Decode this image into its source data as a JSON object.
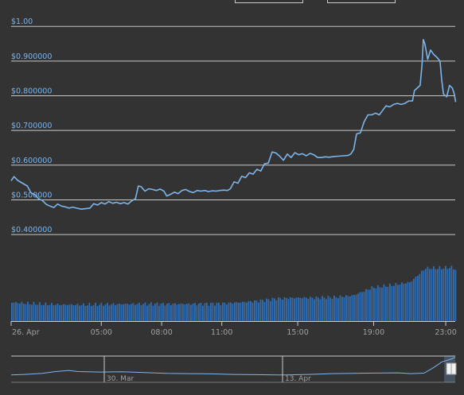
{
  "chart_data": {
    "type": "line",
    "price_axis": {
      "tick_values": [
        1.0,
        0.9,
        0.8,
        0.7,
        0.6,
        0.5,
        0.4
      ],
      "tick_labels": [
        "$1.00",
        "$0.900000",
        "$0.800000",
        "$0.700000",
        "$0.600000",
        "$0.500000",
        "$0.400000"
      ]
    },
    "time_axis": {
      "tick_labels": [
        "26. Apr",
        "05:00",
        "08:00",
        "11:00",
        "15:00",
        "19:00",
        "23:00"
      ],
      "range_hours": [
        0,
        23.4
      ]
    },
    "price_series": [
      [
        0.0,
        0.555
      ],
      [
        0.15,
        0.567
      ],
      [
        0.35,
        0.556
      ],
      [
        0.6,
        0.548
      ],
      [
        0.85,
        0.54
      ],
      [
        1.05,
        0.52
      ],
      [
        1.25,
        0.515
      ],
      [
        1.45,
        0.503
      ],
      [
        1.65,
        0.498
      ],
      [
        1.85,
        0.487
      ],
      [
        2.05,
        0.482
      ],
      [
        2.25,
        0.478
      ],
      [
        2.45,
        0.488
      ],
      [
        2.65,
        0.482
      ],
      [
        2.85,
        0.48
      ],
      [
        3.05,
        0.476
      ],
      [
        3.25,
        0.479
      ],
      [
        3.45,
        0.476
      ],
      [
        3.7,
        0.473
      ],
      [
        3.95,
        0.475
      ],
      [
        4.15,
        0.476
      ],
      [
        4.35,
        0.489
      ],
      [
        4.55,
        0.485
      ],
      [
        4.75,
        0.492
      ],
      [
        4.95,
        0.488
      ],
      [
        5.15,
        0.495
      ],
      [
        5.35,
        0.49
      ],
      [
        5.55,
        0.493
      ],
      [
        5.75,
        0.489
      ],
      [
        5.95,
        0.492
      ],
      [
        6.15,
        0.488
      ],
      [
        6.35,
        0.497
      ],
      [
        6.55,
        0.503
      ],
      [
        6.7,
        0.54
      ],
      [
        6.85,
        0.538
      ],
      [
        7.05,
        0.525
      ],
      [
        7.25,
        0.532
      ],
      [
        7.45,
        0.53
      ],
      [
        7.65,
        0.527
      ],
      [
        7.85,
        0.531
      ],
      [
        8.05,
        0.525
      ],
      [
        8.2,
        0.511
      ],
      [
        8.4,
        0.516
      ],
      [
        8.6,
        0.522
      ],
      [
        8.8,
        0.518
      ],
      [
        9.0,
        0.527
      ],
      [
        9.2,
        0.53
      ],
      [
        9.4,
        0.524
      ],
      [
        9.6,
        0.521
      ],
      [
        9.8,
        0.527
      ],
      [
        10.0,
        0.525
      ],
      [
        10.2,
        0.527
      ],
      [
        10.4,
        0.524
      ],
      [
        10.6,
        0.526
      ],
      [
        10.8,
        0.525
      ],
      [
        11.0,
        0.527
      ],
      [
        11.2,
        0.528
      ],
      [
        11.4,
        0.527
      ],
      [
        11.55,
        0.532
      ],
      [
        11.75,
        0.552
      ],
      [
        11.95,
        0.548
      ],
      [
        12.15,
        0.568
      ],
      [
        12.35,
        0.564
      ],
      [
        12.55,
        0.578
      ],
      [
        12.75,
        0.574
      ],
      [
        12.95,
        0.588
      ],
      [
        13.15,
        0.583
      ],
      [
        13.35,
        0.604
      ],
      [
        13.55,
        0.606
      ],
      [
        13.75,
        0.638
      ],
      [
        13.95,
        0.635
      ],
      [
        14.15,
        0.626
      ],
      [
        14.35,
        0.614
      ],
      [
        14.55,
        0.632
      ],
      [
        14.75,
        0.622
      ],
      [
        14.95,
        0.636
      ],
      [
        15.15,
        0.63
      ],
      [
        15.35,
        0.633
      ],
      [
        15.55,
        0.627
      ],
      [
        15.75,
        0.634
      ],
      [
        15.95,
        0.63
      ],
      [
        16.15,
        0.622
      ],
      [
        16.35,
        0.622
      ],
      [
        16.55,
        0.624
      ],
      [
        16.75,
        0.623
      ],
      [
        17.0,
        0.625
      ],
      [
        17.25,
        0.626
      ],
      [
        17.5,
        0.627
      ],
      [
        17.75,
        0.628
      ],
      [
        17.9,
        0.632
      ],
      [
        18.05,
        0.645
      ],
      [
        18.2,
        0.69
      ],
      [
        18.4,
        0.693
      ],
      [
        18.6,
        0.725
      ],
      [
        18.8,
        0.745
      ],
      [
        19.0,
        0.745
      ],
      [
        19.2,
        0.75
      ],
      [
        19.4,
        0.745
      ],
      [
        19.55,
        0.756
      ],
      [
        19.75,
        0.771
      ],
      [
        19.95,
        0.768
      ],
      [
        20.15,
        0.775
      ],
      [
        20.35,
        0.778
      ],
      [
        20.55,
        0.775
      ],
      [
        20.75,
        0.778
      ],
      [
        20.95,
        0.785
      ],
      [
        21.15,
        0.785
      ],
      [
        21.25,
        0.815
      ],
      [
        21.45,
        0.825
      ],
      [
        21.55,
        0.83
      ],
      [
        21.65,
        0.89
      ],
      [
        21.72,
        0.962
      ],
      [
        21.8,
        0.95
      ],
      [
        21.95,
        0.905
      ],
      [
        22.1,
        0.932
      ],
      [
        22.25,
        0.92
      ],
      [
        22.45,
        0.91
      ],
      [
        22.6,
        0.9
      ],
      [
        22.68,
        0.85
      ],
      [
        22.78,
        0.805
      ],
      [
        22.95,
        0.797
      ],
      [
        23.1,
        0.83
      ],
      [
        23.25,
        0.822
      ],
      [
        23.35,
        0.805
      ],
      [
        23.42,
        0.782
      ]
    ],
    "volume_series": [
      [
        0.0,
        0.48
      ],
      [
        1.0,
        0.45
      ],
      [
        2.0,
        0.43
      ],
      [
        3.0,
        0.42
      ],
      [
        4.0,
        0.42
      ],
      [
        5.0,
        0.43
      ],
      [
        6.0,
        0.44
      ],
      [
        7.0,
        0.44
      ],
      [
        8.0,
        0.44
      ],
      [
        9.0,
        0.44
      ],
      [
        10.0,
        0.44
      ],
      [
        11.0,
        0.45
      ],
      [
        12.0,
        0.48
      ],
      [
        13.0,
        0.52
      ],
      [
        14.0,
        0.58
      ],
      [
        15.0,
        0.6
      ],
      [
        16.0,
        0.6
      ],
      [
        17.0,
        0.61
      ],
      [
        18.0,
        0.66
      ],
      [
        19.0,
        0.86
      ],
      [
        20.0,
        0.92
      ],
      [
        21.0,
        1.0
      ],
      [
        21.8,
        1.36
      ],
      [
        22.5,
        1.36
      ],
      [
        23.2,
        1.38
      ],
      [
        23.4,
        1.32
      ]
    ],
    "navigator": {
      "tick_labels": [
        "30. Mar",
        "13. Apr"
      ],
      "series": [
        [
          0,
          0.28
        ],
        [
          0.03,
          0.3
        ],
        [
          0.07,
          0.34
        ],
        [
          0.1,
          0.41
        ],
        [
          0.13,
          0.45
        ],
        [
          0.15,
          0.41
        ],
        [
          0.2,
          0.39
        ],
        [
          0.25,
          0.4
        ],
        [
          0.3,
          0.37
        ],
        [
          0.35,
          0.34
        ],
        [
          0.4,
          0.33
        ],
        [
          0.45,
          0.32
        ],
        [
          0.5,
          0.3
        ],
        [
          0.55,
          0.29
        ],
        [
          0.6,
          0.28
        ],
        [
          0.62,
          0.28
        ],
        [
          0.67,
          0.3
        ],
        [
          0.72,
          0.33
        ],
        [
          0.77,
          0.34
        ],
        [
          0.82,
          0.35
        ],
        [
          0.87,
          0.36
        ],
        [
          0.9,
          0.33
        ],
        [
          0.93,
          0.35
        ],
        [
          0.95,
          0.55
        ],
        [
          0.97,
          0.78
        ],
        [
          0.99,
          0.88
        ],
        [
          1.0,
          0.95
        ]
      ],
      "selection_start_fraction": 0.975
    },
    "grid": true,
    "legend": false,
    "colors": {
      "background": "#333333",
      "line": "#7cb5ec",
      "volume": "#2f6eb5",
      "grid": "#c8c8c8",
      "axis_labels": "#7cb5ec",
      "x_labels": "#a0a0a0"
    }
  }
}
